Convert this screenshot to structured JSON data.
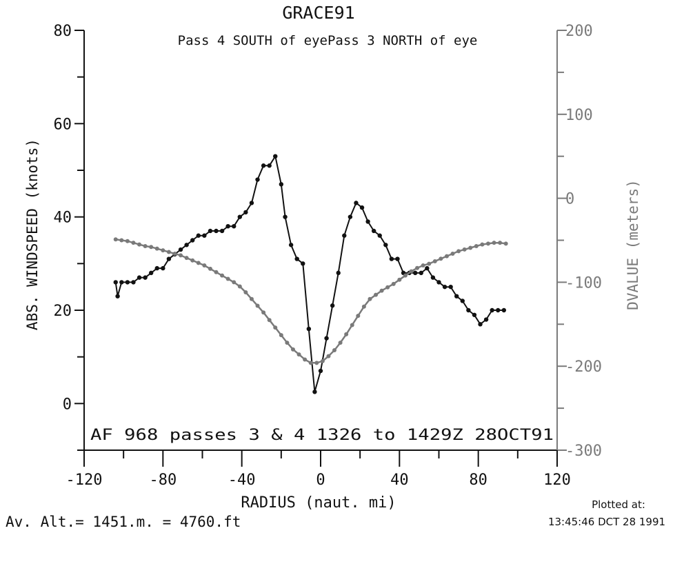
{
  "chart_data": {
    "type": "line",
    "title": "GRACE91",
    "subtitle": "Pass  4 SOUTH of eyePass  3 NORTH of eye",
    "xlabel": "RADIUS (naut. mi)",
    "ylabel": "ABS. WINDSPEED (knots)",
    "y2label": "DVALUE (meters)",
    "xlim": [
      -120,
      120
    ],
    "ylim": [
      -10,
      80
    ],
    "y2lim": [
      -300,
      200
    ],
    "x_ticks": [
      "-120",
      "-80",
      "-40",
      "0",
      "40",
      "80",
      "120"
    ],
    "y_ticks": [
      "0",
      "20",
      "40",
      "60",
      "80"
    ],
    "y2_ticks": [
      "-300",
      "-200",
      "-100",
      "0",
      "100",
      "200"
    ],
    "annotation": "AF 968  passes  3 &  4  1326 to 1429Z 28OCT91",
    "footer_left": "Av. Alt.= 1451.m. =  4760.ft",
    "footer_right_label": "Plotted at:",
    "footer_right_time": "13:45:46 DCT 28 1991",
    "colors": {
      "wind": "#111111",
      "dvalue": "#7a7a7a",
      "axis2": "#7a7a7a"
    },
    "series": [
      {
        "axis": "left",
        "color": "#111111",
        "x": [
          -104,
          -103,
          -101,
          -98,
          -95,
          -92,
          -89,
          -86,
          -83,
          -80,
          -77,
          -74,
          -71,
          -68,
          -65,
          -62,
          -59,
          -56,
          -53,
          -50,
          -47,
          -44,
          -41,
          -38,
          -35,
          -32,
          -29,
          -26,
          -23,
          -20,
          -18,
          -15,
          -12,
          -9,
          -6,
          -3,
          0,
          3,
          6,
          9,
          12,
          15,
          18,
          21,
          24,
          27,
          30,
          33,
          36,
          39,
          42,
          45,
          48,
          51,
          54,
          57,
          60,
          63,
          66,
          69,
          72,
          75,
          78,
          81,
          84,
          87,
          90,
          93
        ],
        "values": [
          26,
          23,
          26,
          26,
          26,
          27,
          27,
          28,
          29,
          29,
          31,
          32,
          33,
          34,
          35,
          36,
          36,
          37,
          37,
          37,
          38,
          38,
          40,
          41,
          43,
          48,
          51,
          51,
          53,
          47,
          40,
          34,
          31,
          30,
          16,
          2.5,
          7,
          14,
          21,
          28,
          36,
          40,
          43,
          42,
          39,
          37,
          36,
          34,
          31,
          31,
          28,
          28,
          28,
          28,
          29,
          27,
          26,
          25,
          25,
          23,
          22,
          20,
          19,
          17,
          18,
          20,
          20,
          20
        ]
      },
      {
        "axis": "right",
        "color": "#7a7a7a",
        "x": [
          -104,
          -101,
          -98,
          -95,
          -92,
          -89,
          -86,
          -83,
          -80,
          -77,
          -74,
          -71,
          -68,
          -65,
          -62,
          -59,
          -56,
          -53,
          -50,
          -47,
          -44,
          -41,
          -38,
          -35,
          -32,
          -29,
          -26,
          -23,
          -20,
          -17,
          -14,
          -11,
          -8,
          -5,
          -2,
          1,
          4,
          7,
          10,
          13,
          16,
          19,
          22,
          25,
          28,
          31,
          34,
          37,
          40,
          43,
          46,
          49,
          52,
          55,
          58,
          61,
          64,
          67,
          70,
          73,
          76,
          79,
          82,
          85,
          88,
          91,
          94
        ],
        "values": [
          -49,
          -50,
          -51,
          -53,
          -55,
          -57,
          -58,
          -60,
          -62,
          -64,
          -66,
          -68,
          -71,
          -74,
          -77,
          -80,
          -84,
          -88,
          -92,
          -96,
          -100,
          -105,
          -112,
          -120,
          -128,
          -136,
          -145,
          -154,
          -163,
          -172,
          -180,
          -186,
          -192,
          -196,
          -196,
          -194,
          -188,
          -181,
          -172,
          -162,
          -151,
          -140,
          -129,
          -120,
          -115,
          -110,
          -106,
          -102,
          -97,
          -92,
          -87,
          -83,
          -80,
          -78,
          -75,
          -72,
          -69,
          -66,
          -63,
          -61,
          -59,
          -57,
          -55,
          -54,
          -53,
          -53,
          -54
        ]
      }
    ]
  }
}
